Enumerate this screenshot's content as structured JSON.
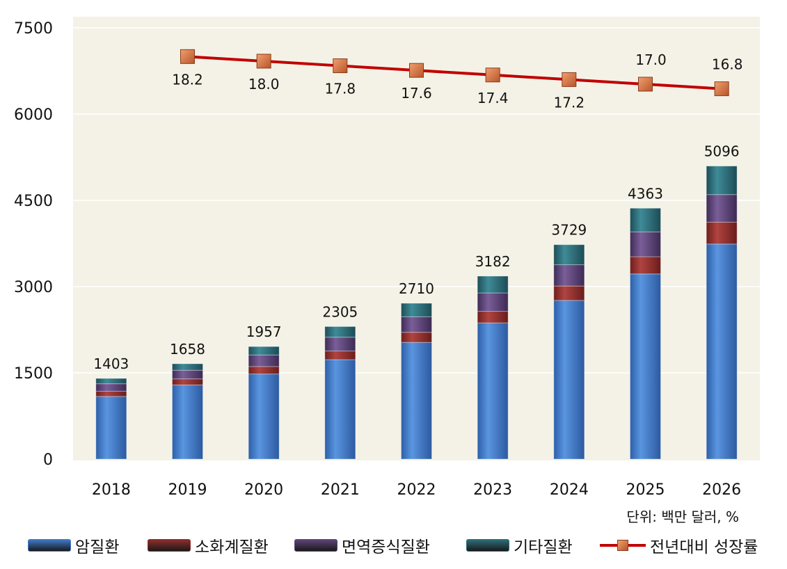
{
  "chart_data": {
    "type": "bar",
    "stacked": true,
    "categories": [
      "2018",
      "2019",
      "2020",
      "2021",
      "2022",
      "2023",
      "2024",
      "2025",
      "2026"
    ],
    "totals": [
      1403,
      1658,
      1957,
      2305,
      2710,
      3182,
      3729,
      4363,
      5096
    ],
    "total_labels": [
      "1403",
      "1658",
      "1957",
      "2305",
      "2710",
      "3182",
      "3729",
      "4363",
      "5096"
    ],
    "series": [
      {
        "name": "암질환",
        "values": [
          1090,
          1290,
          1480,
          1730,
          2030,
          2370,
          2760,
          3220,
          3740
        ],
        "color": "#3f79c9"
      },
      {
        "name": "소화계질환",
        "values": [
          90,
          105,
          130,
          150,
          175,
          200,
          250,
          300,
          380
        ],
        "color": "#8e2e2b"
      },
      {
        "name": "면역증식질환",
        "values": [
          130,
          150,
          200,
          240,
          270,
          320,
          370,
          430,
          480
        ],
        "color": "#5c4477"
      },
      {
        "name": "기타질환",
        "values": [
          93,
          113,
          147,
          185,
          235,
          292,
          349,
          413,
          496
        ],
        "color": "#2d6e7a"
      }
    ],
    "line_series": {
      "name": "전년대비 성장률",
      "values": [
        18.2,
        18.0,
        17.8,
        17.6,
        17.4,
        17.2,
        17.0,
        16.8
      ],
      "labels": [
        "18.2",
        "18.0",
        "17.8",
        "17.6",
        "17.4",
        "17.2",
        "17.0",
        "16.8"
      ],
      "categories": [
        "2019",
        "2020",
        "2021",
        "2022",
        "2023",
        "2024",
        "2025",
        "2026"
      ],
      "plot_values": [
        7000,
        6920,
        6840,
        6760,
        6680,
        6600,
        6520,
        6440
      ],
      "color": "#c00000",
      "marker_color": "#d9733b"
    },
    "y_ticks": [
      "7500",
      "6000",
      "4500",
      "3000",
      "1500",
      "0"
    ],
    "ylim": [
      0,
      7500
    ],
    "unit_note": "단위:  백만  달러, %",
    "legend": [
      {
        "name": "암질환",
        "color": "#3f79c9",
        "kind": "bar"
      },
      {
        "name": "소화계질환",
        "color": "#8e2e2b",
        "kind": "bar"
      },
      {
        "name": "면역증식질환",
        "color": "#5c4477",
        "kind": "bar"
      },
      {
        "name": "기타질환",
        "color": "#2d6e7a",
        "kind": "bar"
      },
      {
        "name": "전년대비 성장률",
        "color": "#c00000",
        "kind": "line"
      }
    ],
    "plot_background": "#f4f2e6",
    "grid": true
  }
}
